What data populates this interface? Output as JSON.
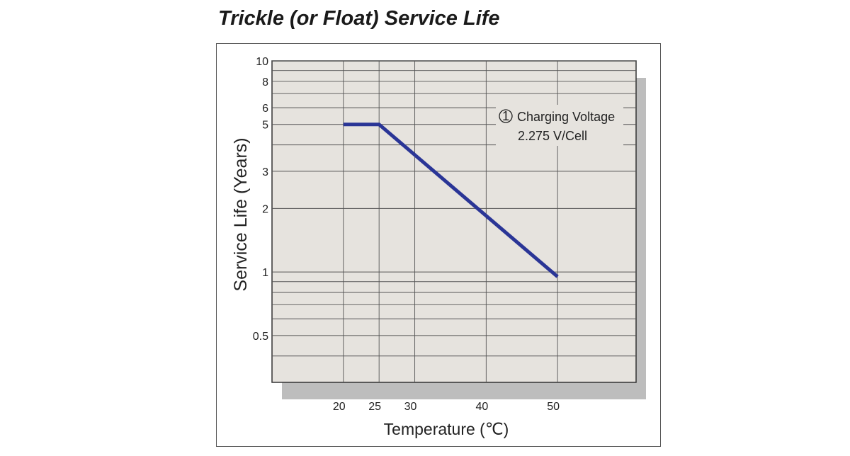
{
  "chart_data": {
    "type": "line",
    "title": "Trickle (or Float) Service Life",
    "xlabel": "Temperature (℃)",
    "ylabel": "Service Life (Years)",
    "x_scale": "linear",
    "y_scale": "log",
    "xlim": [
      10,
      61
    ],
    "ylim": [
      0.3,
      10
    ],
    "x_ticks": [
      20,
      25,
      30,
      40,
      50
    ],
    "x_tick_labels": [
      "20",
      "25",
      "30",
      "40",
      "50"
    ],
    "y_tick_labels_values": [
      0.5,
      1,
      2,
      3,
      5,
      6,
      8,
      10
    ],
    "y_tick_labels": [
      "0.5",
      "1",
      "2",
      "3",
      "5",
      "6",
      "8",
      "10"
    ],
    "y_gridlines": [
      0.4,
      0.5,
      0.6,
      0.7,
      0.8,
      0.9,
      1,
      2,
      3,
      4,
      5,
      6,
      7,
      8,
      9,
      10
    ],
    "grid": true,
    "series": [
      {
        "color": "#2a3596",
        "x": [
          20,
          25,
          50
        ],
        "y": [
          5,
          5,
          0.95
        ]
      }
    ],
    "annotation": {
      "marker": "1",
      "line1": "Charging Voltage",
      "line2": "2.275 V/Cell"
    }
  },
  "colors": {
    "plot_background": "#e6e3de",
    "shadow": "#bdbdbd",
    "grid": "#555555",
    "line": "#2a3596"
  }
}
